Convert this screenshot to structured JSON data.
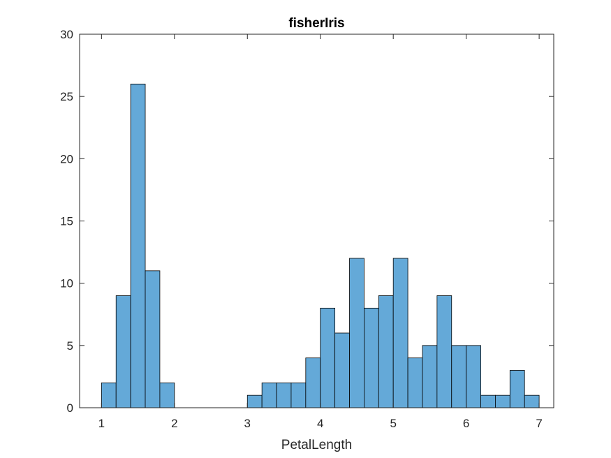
{
  "chart_data": {
    "type": "bar",
    "title": "fisherIris",
    "xlabel": "PetalLength",
    "ylabel": "",
    "xlim": [
      0.7,
      7.2
    ],
    "ylim": [
      0,
      30
    ],
    "xticks": [
      "1",
      "2",
      "3",
      "4",
      "5",
      "6",
      "7"
    ],
    "yticks": [
      "0",
      "5",
      "10",
      "15",
      "20",
      "25",
      "30"
    ],
    "bin_width": 0.2,
    "bin_edges_start": 1.0,
    "values": [
      2,
      9,
      26,
      11,
      2,
      0,
      0,
      0,
      0,
      0,
      1,
      2,
      2,
      2,
      4,
      8,
      6,
      12,
      8,
      9,
      12,
      4,
      5,
      9,
      5,
      5,
      1,
      1,
      3,
      1
    ],
    "bar_color": "#64A9D8",
    "edge_color": "#000000",
    "grid": false,
    "legend": "none"
  }
}
